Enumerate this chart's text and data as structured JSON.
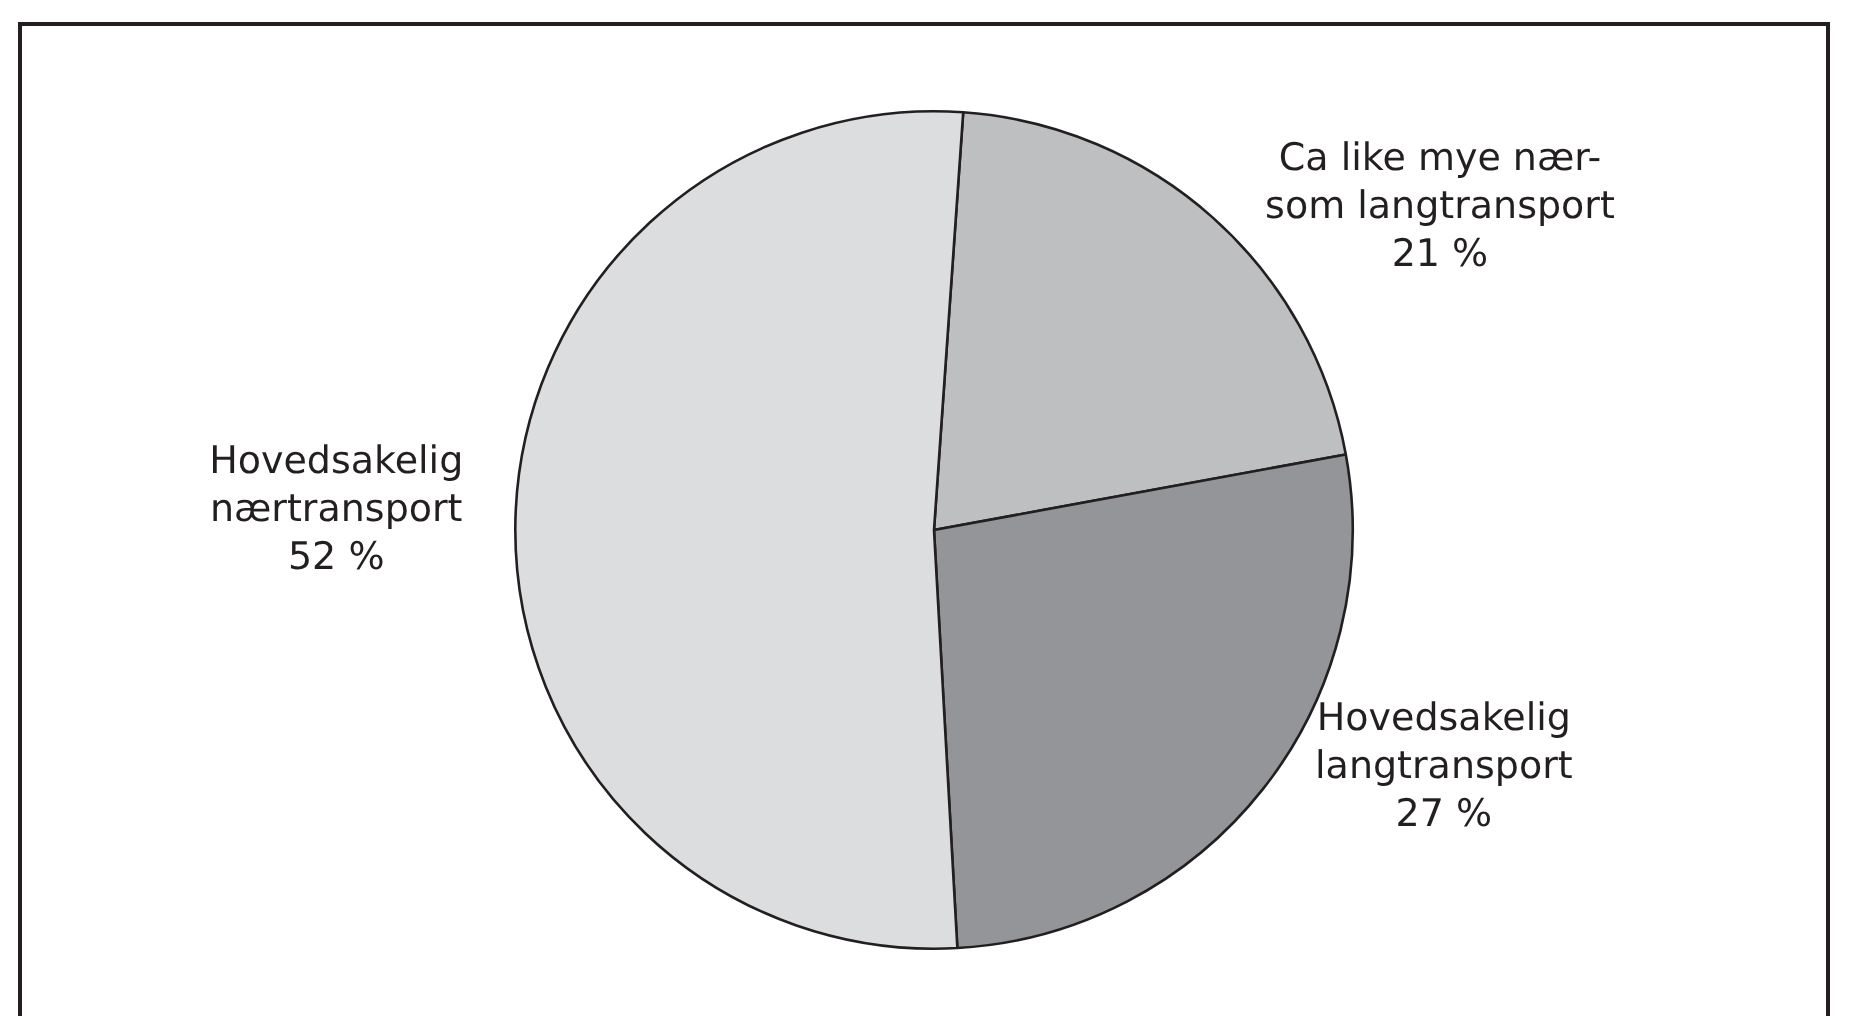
{
  "chart_data": {
    "type": "pie",
    "categories": [
      "Ca like mye nær- som langtransport",
      "Hovedsakelig langtransport",
      "Hovedsakelig nærtransport"
    ],
    "values": [
      21,
      27,
      52
    ],
    "colors": [
      "#bdbfc1",
      "#939598",
      "#dcdddf"
    ],
    "value_labels": [
      "21 %",
      "27 %",
      "52 %"
    ]
  }
}
